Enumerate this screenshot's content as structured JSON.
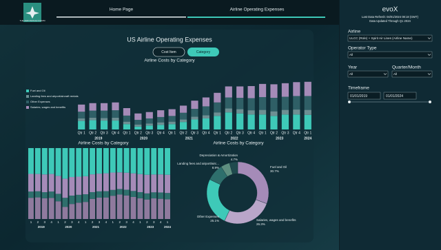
{
  "header": {
    "logo": "THE AEROSPACE FORUM",
    "tabs": [
      "Home Page",
      "Airline Operating Expenses"
    ]
  },
  "title": "US Airline Operating Expenses",
  "toggle": [
    "Cost Item",
    "Category"
  ],
  "sidebar": {
    "brand": "evoX",
    "refresh": "Last Data Refresh: 04/01/2024 08:18 (GMT)",
    "through": "Data Updated Through Q1 2024",
    "filters": [
      {
        "label": "Airline",
        "value": "ULCC (Role) + Spirit Air Lines (Airline Name)"
      },
      {
        "label": "Operator Type",
        "value": "All"
      },
      {
        "label": "Year",
        "value": "All"
      },
      {
        "label": "Quarter/Month",
        "value": "All"
      }
    ],
    "timeframe": {
      "label": "Timeframe",
      "start": "01/01/2019",
      "end": "01/01/2024"
    }
  },
  "chart_data": [
    {
      "type": "stacked_bar",
      "title": "Airline Costs by Category",
      "categories": [
        "Qtr 1",
        "Qtr 2",
        "Qtr 3",
        "Qtr 4",
        "Qtr 1",
        "Qtr 2",
        "Qtr 3",
        "Qtr 4",
        "Qtr 1",
        "Qtr 2",
        "Qtr 3",
        "Qtr 4",
        "Qtr 1",
        "Qtr 2",
        "Qtr 3",
        "Qtr 4",
        "Qtr 1",
        "Qtr 2",
        "Qtr 3",
        "Qtr 4",
        "Qtr 1"
      ],
      "years": [
        "2019",
        "2020",
        "2021",
        "2022",
        "2023",
        "2024"
      ],
      "ylim": [
        0,
        1.8
      ],
      "legend": "left",
      "series": [
        {
          "name": "Fuel and Oil",
          "color": "#3ec9b8",
          "values": [
            0.24,
            0.26,
            0.25,
            0.25,
            0.15,
            0.08,
            0.11,
            0.13,
            0.15,
            0.21,
            0.28,
            0.31,
            0.38,
            0.48,
            0.45,
            0.42,
            0.42,
            0.38,
            0.42,
            0.42,
            0.41
          ]
        },
        {
          "name": "Landing fees and airport/aircraft rentals",
          "color": "#6d8f93",
          "values": [
            0.07,
            0.07,
            0.07,
            0.08,
            0.07,
            0.06,
            0.06,
            0.07,
            0.07,
            0.07,
            0.08,
            0.09,
            0.1,
            0.11,
            0.12,
            0.12,
            0.13,
            0.13,
            0.13,
            0.14,
            0.14
          ]
        },
        {
          "name": "Other Expenses",
          "color": "#2f5f66",
          "values": [
            0.19,
            0.2,
            0.21,
            0.21,
            0.17,
            0.13,
            0.14,
            0.15,
            0.16,
            0.19,
            0.22,
            0.25,
            0.28,
            0.31,
            0.32,
            0.34,
            0.36,
            0.38,
            0.37,
            0.38,
            0.39
          ]
        },
        {
          "name": "Salaries, wages and benefits",
          "color": "#a58bb8",
          "values": [
            0.2,
            0.21,
            0.21,
            0.22,
            0.21,
            0.18,
            0.18,
            0.19,
            0.19,
            0.2,
            0.23,
            0.25,
            0.27,
            0.31,
            0.32,
            0.34,
            0.37,
            0.38,
            0.38,
            0.39,
            0.4
          ]
        }
      ]
    },
    {
      "type": "stacked_bar",
      "title": "Airline Costs by Category",
      "categories": [
        "1",
        "2",
        "3",
        "4",
        "1",
        "2",
        "3",
        "4",
        "1",
        "2",
        "3",
        "4",
        "1",
        "2",
        "3",
        "4",
        "1",
        "2",
        "3",
        "4",
        "1"
      ],
      "years": [
        "2019",
        "2020",
        "2021",
        "2022",
        "2023",
        "2024"
      ],
      "ylim": [
        0,
        100
      ],
      "series": [
        {
          "name": "Fuel and Oil",
          "color": "#8f7a9e",
          "values": [
            29.9,
            30.5,
            29.3,
            29.7,
            25.0,
            17.1,
            21.2,
            23.0,
            24.1,
            28.4,
            30.1,
            30.4,
            32.8,
            34.5,
            33.2,
            31.1,
            29.2,
            27.5,
            29.1,
            28.5,
            27.7
          ]
        },
        {
          "name": "Landing fees and airport/aircraft rentals",
          "color": "#2e6f6c",
          "values": [
            8.8,
            8.6,
            8.5,
            9.0,
            10.5,
            12.8,
            11.8,
            11.1,
            10.8,
            9.5,
            8.9,
            8.8,
            8.2,
            7.8,
            8.1,
            8.4,
            8.7,
            8.6,
            8.5,
            8.9,
            9.0
          ]
        },
        {
          "name": "Other Expenses",
          "color": "#a58bb8",
          "values": [
            24.9,
            24.4,
            25.1,
            24.8,
            25.3,
            27.0,
            26.2,
            25.6,
            25.4,
            25.1,
            25.0,
            25.3,
            24.5,
            23.5,
            24.0,
            24.9,
            25.4,
            26.3,
            25.2,
            25.5,
            25.7
          ]
        },
        {
          "name": "Salaries, wages and benefits",
          "color": "#3ec9b8",
          "values": [
            36.4,
            36.5,
            37.1,
            36.5,
            39.2,
            43.1,
            40.8,
            40.3,
            39.7,
            37.0,
            36.0,
            35.5,
            34.5,
            34.2,
            34.7,
            35.6,
            36.7,
            37.6,
            37.2,
            37.1,
            37.6
          ]
        }
      ]
    },
    {
      "type": "donut",
      "title": "Airline Costs by Category",
      "categories": [
        "Fuel and Oil",
        "Salaries, wages and benefits",
        "Other Expenses",
        "Landing fees and airport/airc...",
        "Depreciation & Amortization",
        null
      ],
      "values": [
        30.7,
        26.3,
        25.1,
        8.9,
        4.7,
        4.3
      ],
      "value_labels": [
        "30.7%",
        "26.3%",
        "25.1%",
        "8.9%",
        "4.7%",
        null
      ],
      "colors": [
        "#a58bb8",
        "#b9a6c9",
        "#3ec9b8",
        "#2e6f6c",
        "#5e8f80",
        "#1f4a4e"
      ]
    }
  ]
}
